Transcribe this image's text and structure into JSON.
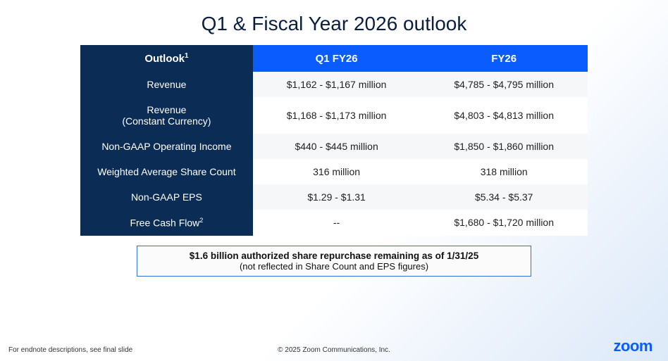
{
  "title": "Q1 & Fiscal Year 2026 outlook",
  "table": {
    "headers": {
      "outlook": "Outlook",
      "outlook_sup": "1",
      "q1": "Q1 FY26",
      "fy": "FY26"
    },
    "rows": [
      {
        "label": "Revenue",
        "q1": "$1,162 - $1,167 million",
        "fy": "$4,785 - $4,795 million"
      },
      {
        "label": "Revenue\n(Constant Currency)",
        "q1": "$1,168 - $1,173 million",
        "fy": "$4,803 - $4,813 million"
      },
      {
        "label": "Non-GAAP Operating Income",
        "q1": "$440 - $445 million",
        "fy": "$1,850 - $1,860 million"
      },
      {
        "label": "Weighted Average Share Count",
        "q1": "316 million",
        "fy": "318 million"
      },
      {
        "label": "Non-GAAP EPS",
        "q1": "$1.29 - $1.31",
        "fy": "$5.34 - $5.37"
      },
      {
        "label": "Free Cash Flow",
        "label_sup": "2",
        "q1": "--",
        "fy": "$1,680 - $1,720 million"
      }
    ]
  },
  "note": {
    "line1": "$1.6 billion authorized share repurchase remaining as of 1/31/25",
    "line2": "(not reflected in Share Count and EPS figures)"
  },
  "footer": {
    "left": "For endnote descriptions, see final slide",
    "center": "© 2025 Zoom Communications, Inc."
  },
  "logo": "zoom",
  "colors": {
    "header_dark": "#0b2c55",
    "header_blue": "#0b5cff",
    "alt_bg": "#f6f7f8",
    "logo": "#0b5cff"
  }
}
